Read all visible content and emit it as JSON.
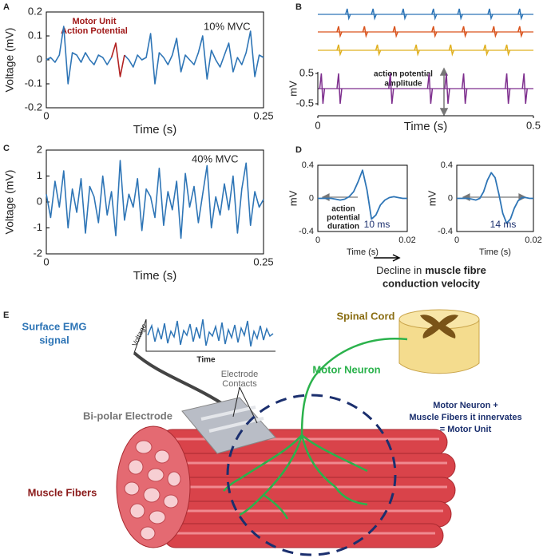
{
  "panel_a": {
    "letter": "A",
    "type": "line",
    "ylabel": "Voltage (mV)",
    "xlabel": "Time (s)",
    "condition": "10% MVC",
    "annotation": [
      "Motor Unit",
      "Action Potential"
    ],
    "xlim": [
      0,
      0.25
    ],
    "ylim": [
      -0.2,
      0.2
    ],
    "xticks": [
      0,
      0.25
    ],
    "yticks": [
      -0.2,
      -0.1,
      0,
      0.1,
      0.2
    ],
    "x": [
      0,
      0.005,
      0.01,
      0.015,
      0.02,
      0.025,
      0.03,
      0.035,
      0.04,
      0.045,
      0.05,
      0.055,
      0.06,
      0.065,
      0.07,
      0.075,
      0.08,
      0.085,
      0.09,
      0.095,
      0.1,
      0.105,
      0.11,
      0.115,
      0.12,
      0.125,
      0.13,
      0.135,
      0.14,
      0.145,
      0.15,
      0.155,
      0.16,
      0.165,
      0.17,
      0.175,
      0.18,
      0.185,
      0.19,
      0.195,
      0.2,
      0.205,
      0.21,
      0.215,
      0.22,
      0.225,
      0.23,
      0.235,
      0.24,
      0.245,
      0.25
    ],
    "series": [
      {
        "color": "#2e75b6",
        "values": [
          0,
          0.01,
          -0.01,
          0.02,
          0.14,
          -0.1,
          0.03,
          0.02,
          -0.01,
          0.03,
          0,
          -0.02,
          0.02,
          0.01,
          -0.02,
          0.01,
          null,
          null,
          0.02,
          0,
          -0.03,
          0.02,
          0,
          0.01,
          0.11,
          -0.1,
          0.03,
          0.01,
          -0.02,
          0.02,
          0.09,
          -0.05,
          0.02,
          0,
          -0.02,
          0.03,
          0.1,
          -0.08,
          0.04,
          0,
          -0.03,
          0.02,
          0.07,
          -0.05,
          0.01,
          -0.02,
          0.03,
          0.12,
          -0.07,
          0.02,
          0.01
        ]
      },
      {
        "color": "#b22222",
        "values": [
          null,
          null,
          null,
          null,
          null,
          null,
          null,
          null,
          null,
          null,
          null,
          null,
          null,
          null,
          null,
          0.01,
          0.07,
          -0.07,
          0.02,
          null,
          null,
          null,
          null,
          null,
          null,
          null,
          null,
          null,
          null,
          null,
          null,
          null,
          null,
          null,
          null,
          null,
          null,
          null,
          null,
          null,
          null,
          null,
          null,
          null,
          null,
          null,
          null,
          null,
          null,
          null,
          null
        ]
      }
    ]
  },
  "panel_b": {
    "letter": "B",
    "type": "spike_trains",
    "ylabel": "mV",
    "xlabel": "Time (s)",
    "annotation": [
      "action potential",
      "amplitude"
    ],
    "xlim": [
      0,
      0.5
    ],
    "ylim": [
      -0.5,
      0.5
    ],
    "xticks": [
      0,
      0.5
    ],
    "yticks": [
      -0.5,
      0.5
    ],
    "series": [
      {
        "color": "#2e75b6",
        "spikes": [
          0.07,
          0.13,
          0.2,
          0.27,
          0.33,
          0.4,
          0.47
        ]
      },
      {
        "color": "#d9541e",
        "spikes": [
          0.05,
          0.11,
          0.18,
          0.27,
          0.34,
          0.41,
          0.47
        ]
      },
      {
        "color": "#e0b020",
        "spikes": [
          0.05,
          0.14,
          0.23,
          0.31,
          0.39,
          0.44
        ]
      },
      {
        "color": "#7e2f8e",
        "spikes": [
          0.01,
          0.05,
          0.17,
          0.26,
          0.3,
          0.34,
          0.44,
          0.48
        ]
      }
    ]
  },
  "panel_c": {
    "letter": "C",
    "type": "line",
    "ylabel": "Voltage (mV)",
    "xlabel": "Time (s)",
    "condition": "40% MVC",
    "xlim": [
      0,
      0.25
    ],
    "ylim": [
      -2,
      2
    ],
    "xticks": [
      0,
      0.25
    ],
    "yticks": [
      -2,
      -1,
      0,
      1,
      2
    ],
    "x": [
      0,
      0.005,
      0.01,
      0.015,
      0.02,
      0.025,
      0.03,
      0.035,
      0.04,
      0.045,
      0.05,
      0.055,
      0.06,
      0.065,
      0.07,
      0.075,
      0.08,
      0.085,
      0.09,
      0.095,
      0.1,
      0.105,
      0.11,
      0.115,
      0.12,
      0.125,
      0.13,
      0.135,
      0.14,
      0.145,
      0.15,
      0.155,
      0.16,
      0.165,
      0.17,
      0.175,
      0.18,
      0.185,
      0.19,
      0.195,
      0.2,
      0.205,
      0.21,
      0.215,
      0.22,
      0.225,
      0.23,
      0.235,
      0.24,
      0.245,
      0.25
    ],
    "series": [
      {
        "color": "#2e75b6",
        "values": [
          0.3,
          -0.6,
          0.8,
          -0.2,
          1.2,
          -1,
          0.5,
          -0.4,
          0.9,
          -1.2,
          0.6,
          0.2,
          -0.8,
          1,
          -0.5,
          0.4,
          -1.3,
          1.6,
          -0.7,
          0.3,
          -0.2,
          0.9,
          -1.1,
          0.5,
          0.2,
          -0.6,
          1.3,
          -0.9,
          0.4,
          -0.3,
          0.8,
          -1.4,
          1.1,
          -0.2,
          0.6,
          -0.8,
          0.3,
          1.4,
          -1,
          0.2,
          -0.5,
          0.7,
          -0.3,
          1,
          -1.2,
          0.5,
          1.5,
          -0.9,
          0.4,
          -0.2,
          0.1
        ]
      }
    ]
  },
  "panel_d": {
    "letter": "D",
    "type": "line_pair",
    "ylabel": "mV",
    "xlabel": "Time (s)",
    "annotation": [
      "action",
      "potential",
      "duration"
    ],
    "caption": {
      "start": "Decline in",
      "bold": "muscle fibre",
      "line2": "conduction velocity"
    },
    "xlim": [
      0,
      0.02
    ],
    "ylim": [
      -0.4,
      0.4
    ],
    "xticks": [
      0,
      0.02
    ],
    "yticks": [
      -0.4,
      0,
      0.4
    ],
    "color": "#2e75b6",
    "subplots": [
      {
        "label": "10 ms",
        "x": [
          0,
          0.001,
          0.002,
          0.003,
          0.004,
          0.005,
          0.006,
          0.007,
          0.008,
          0.009,
          0.01,
          0.011,
          0.012,
          0.013,
          0.014,
          0.015,
          0.016,
          0.017,
          0.018,
          0.019,
          0.02
        ],
        "values": [
          0,
          0,
          0,
          0,
          -0.01,
          -0.02,
          -0.01,
          0.02,
          0.08,
          0.2,
          0.34,
          0.1,
          -0.25,
          -0.2,
          -0.08,
          -0.02,
          0.01,
          0.02,
          0.01,
          0,
          0
        ]
      },
      {
        "label": "14 ms",
        "x": [
          0,
          0.001,
          0.002,
          0.003,
          0.004,
          0.005,
          0.006,
          0.007,
          0.008,
          0.009,
          0.01,
          0.011,
          0.012,
          0.013,
          0.014,
          0.015,
          0.016,
          0.017,
          0.018,
          0.019,
          0.02
        ],
        "values": [
          0,
          0,
          0,
          0,
          -0.01,
          -0.02,
          0,
          0.08,
          0.22,
          0.31,
          0.25,
          0.05,
          -0.18,
          -0.3,
          -0.25,
          -0.12,
          -0.03,
          0.01,
          0.01,
          0,
          0
        ]
      }
    ]
  },
  "panel_e": {
    "letter": "E",
    "surface_emg": [
      "Surface EMG",
      "signal"
    ],
    "voltage": "Voltage",
    "time": "Time",
    "spinal_cord": "Spinal Cord",
    "motor_neuron": "Motor Neuron",
    "electrode_contacts": [
      "Electrode",
      "Contacts"
    ],
    "bipolar_electrode": "Bi-polar Electrode",
    "motor_unit": [
      "Motor Neuron +",
      "Muscle Fibers it innervates",
      "= Motor Unit"
    ],
    "muscle_fibers": "Muscle Fibers"
  }
}
